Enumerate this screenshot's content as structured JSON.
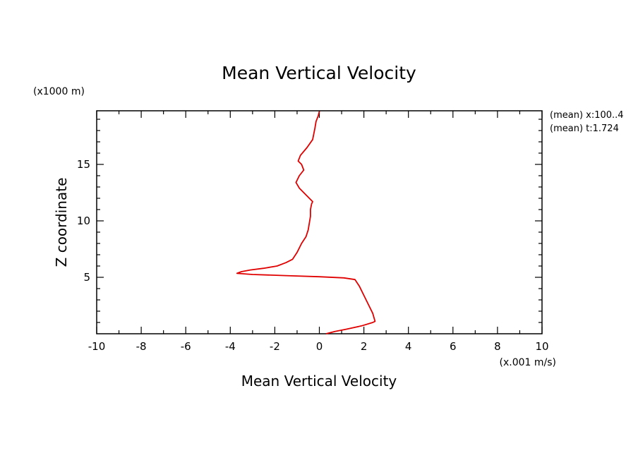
{
  "chart_data": {
    "type": "line",
    "title": "Mean Vertical Velocity",
    "xlabel": "Mean Vertical Velocity",
    "ylabel": "Z coordinate",
    "x_units": "(x.001 m/s)",
    "y_units": "(x1000 m)",
    "xlim": [
      -10,
      10
    ],
    "ylim": [
      0,
      19.75
    ],
    "xticks": [
      -10,
      -8,
      -6,
      -4,
      -2,
      0,
      2,
      4,
      6,
      8,
      10
    ],
    "xtick_labels": [
      "-10",
      "-8",
      "-6",
      "-4",
      "-2",
      "0",
      "2",
      "4",
      "6",
      "8",
      "10"
    ],
    "yticks": [
      5,
      10,
      15
    ],
    "ytick_labels": [
      "5",
      "10",
      "15"
    ],
    "grid": false,
    "annotations": [
      "(mean) x:100..4",
      "(mean) t:1.724"
    ],
    "series": [
      {
        "color": "#e00000",
        "x": [
          0.3,
          0.7,
          1.2,
          1.9,
          2.4,
          2.5,
          2.4,
          2.2,
          2.0,
          1.8,
          1.6,
          1.1,
          0.0,
          -1.5,
          -3.0,
          -3.7,
          -3.5,
          -3.1,
          -2.5,
          -1.9,
          -1.5,
          -1.2,
          -1.0,
          -0.8,
          -0.6,
          -0.5,
          -0.45,
          -0.4,
          -0.4,
          -0.35,
          -0.3,
          -0.6,
          -0.9,
          -1.05,
          -0.9,
          -0.7,
          -0.8,
          -0.95,
          -0.85,
          -0.55,
          -0.3,
          -0.2,
          -0.15,
          -0.05,
          0.0
        ],
        "y": [
          0.0,
          0.2,
          0.4,
          0.7,
          1.0,
          1.1,
          1.8,
          2.6,
          3.4,
          4.2,
          4.8,
          4.95,
          5.05,
          5.15,
          5.25,
          5.35,
          5.5,
          5.65,
          5.8,
          6.0,
          6.3,
          6.6,
          7.2,
          8.0,
          8.6,
          9.2,
          9.8,
          10.4,
          11.0,
          11.5,
          11.7,
          12.3,
          12.9,
          13.4,
          14.0,
          14.5,
          15.0,
          15.3,
          15.8,
          16.5,
          17.2,
          18.2,
          18.8,
          19.3,
          19.7
        ]
      }
    ]
  }
}
